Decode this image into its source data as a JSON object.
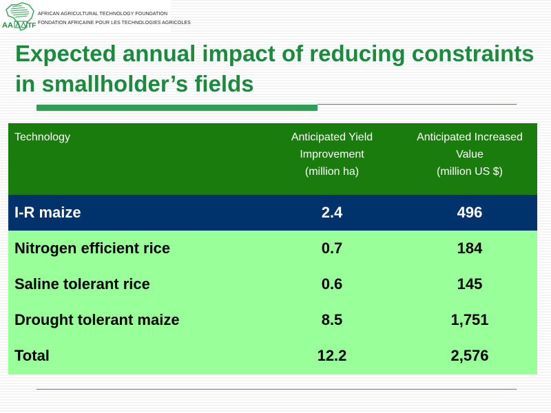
{
  "logo": {
    "line1": "AFRICAN AGRICULTURAL TECHNOLOGY FOUNDATION",
    "line2": "FONDATION AFRICAINE POUR LES TECHNOLOGIES AGRICOLES"
  },
  "title": "Expected annual impact of reducing constraints in smallholder’s fields",
  "table": {
    "headers": {
      "col1": "Technology",
      "col2": [
        "Anticipated Yield",
        "Improvement",
        "(million ha)"
      ],
      "col3": [
        "Anticipated Increased",
        "Value",
        "(million US $)"
      ]
    },
    "rows": [
      {
        "technology": "I-R maize",
        "yield": "2.4",
        "value": "496"
      },
      {
        "technology": "Nitrogen efficient rice",
        "yield": "0.7",
        "value": "184"
      },
      {
        "technology": "Saline tolerant rice",
        "yield": "0.6",
        "value": "145"
      },
      {
        "technology": "Drought tolerant maize",
        "yield": "8.5",
        "value": "1,751"
      },
      {
        "technology": "Total",
        "yield": "12.2",
        "value": "2,576"
      }
    ]
  },
  "colors": {
    "title": "#1a8a3c",
    "header_bg": "#1a7c0c",
    "highlight_bg": "#00336b",
    "row_bg": "#99ff99"
  }
}
